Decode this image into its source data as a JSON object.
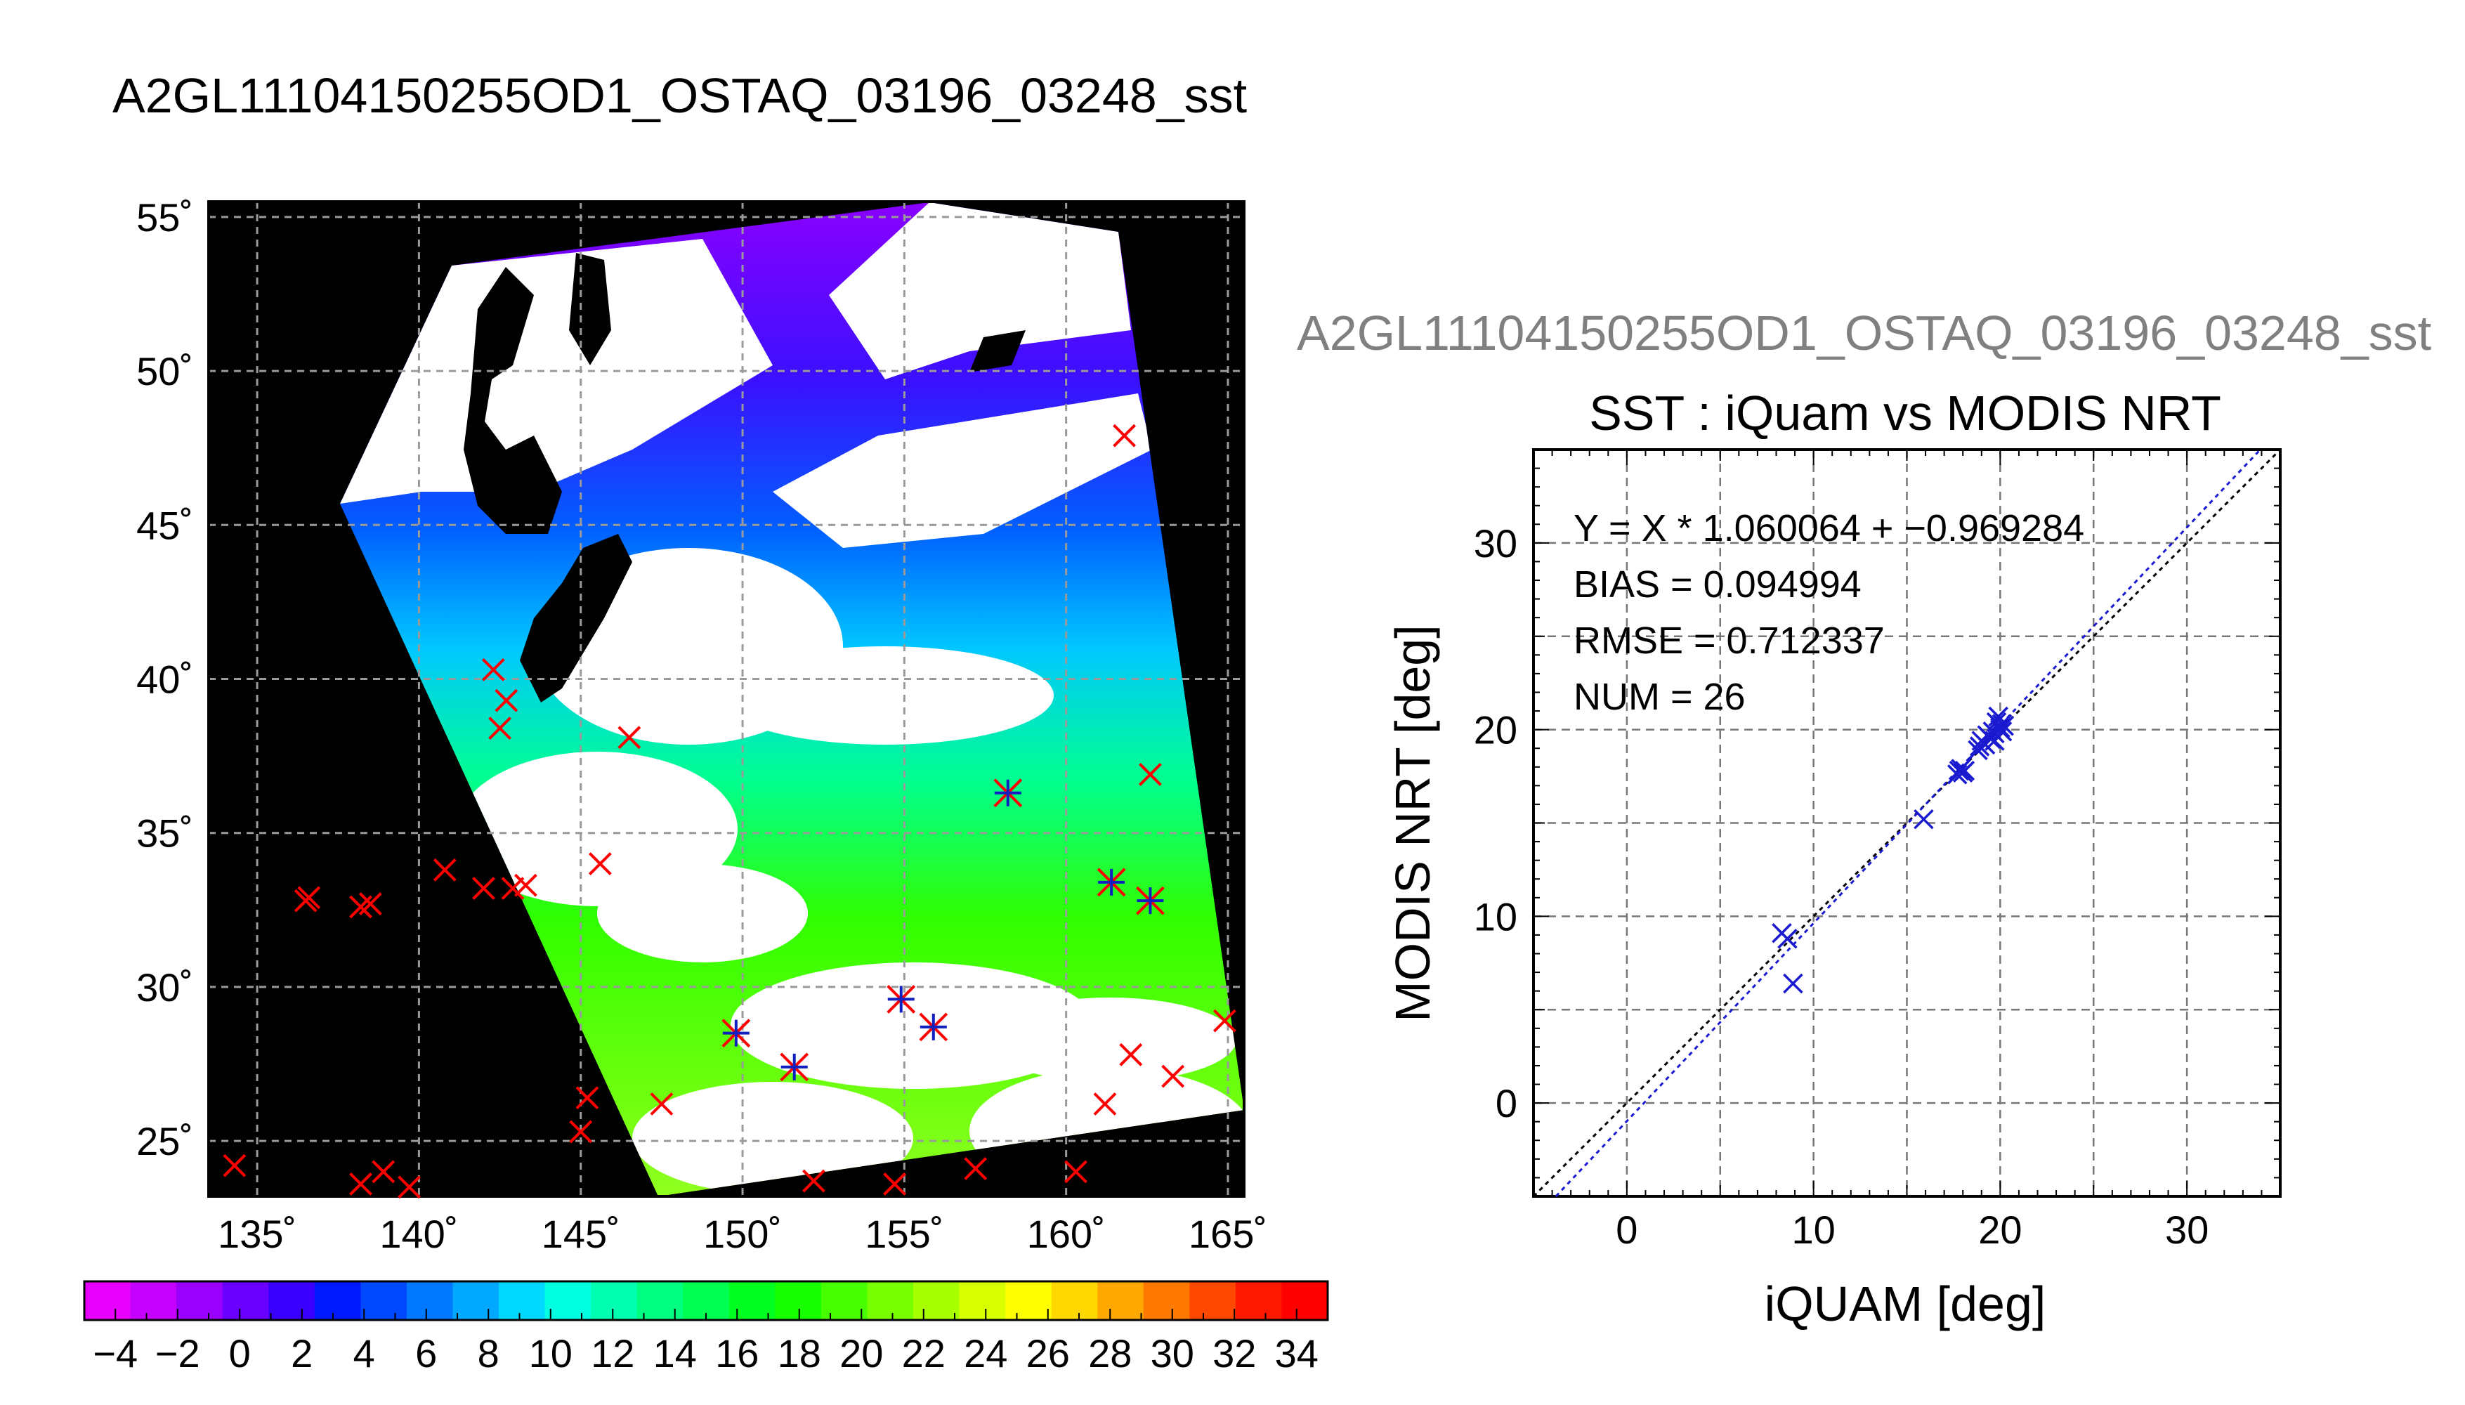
{
  "page": {
    "title": "A2GL11104150255OD1_OSTAQ_03196_03248_sst"
  },
  "chart_data": [
    {
      "type": "map",
      "name": "",
      "x_tick_labels": [
        "135˚",
        "140˚",
        "145˚",
        "150˚",
        "155˚",
        "160˚",
        "165˚"
      ],
      "y_tick_labels": [
        "55˚",
        "50˚",
        "45˚",
        "40˚",
        "35˚",
        "30˚",
        "25˚"
      ],
      "xlim": [
        133.5,
        165.5
      ],
      "ylim": [
        23.2,
        55.5
      ],
      "x_ticks": [
        135,
        140,
        145,
        150,
        155,
        160,
        165
      ],
      "y_ticks": [
        55,
        50,
        45,
        40,
        35,
        30,
        25
      ],
      "grid": true,
      "colorbar": {
        "min": -5,
        "max": 35,
        "labels": [
          "−4",
          "−2",
          "0",
          "2",
          "4",
          "6",
          "8",
          "10",
          "12",
          "14",
          "16",
          "18",
          "20",
          "22",
          "24",
          "26",
          "28",
          "30",
          "32",
          "34"
        ],
        "colors": [
          "#e800ff",
          "#c400ff",
          "#9a00ff",
          "#6a00ff",
          "#3a00ff",
          "#0018ff",
          "#0048ff",
          "#0078ff",
          "#00a8ff",
          "#00d8ff",
          "#00ffe0",
          "#00ffb0",
          "#00ff80",
          "#00ff50",
          "#00ff20",
          "#18ff00",
          "#48ff00",
          "#78ff00",
          "#a8ff00",
          "#d8ff00",
          "#ffff00",
          "#ffd800",
          "#ffa800",
          "#ff7800",
          "#ff4800",
          "#ff1800",
          "#ff0000"
        ]
      },
      "markers_red_x": [
        [
          134.3,
          24.2
        ],
        [
          136.5,
          32.8
        ],
        [
          136.6,
          32.9
        ],
        [
          138.2,
          32.6
        ],
        [
          138.5,
          32.7
        ],
        [
          138.2,
          23.6
        ],
        [
          138.9,
          24.0
        ],
        [
          139.7,
          23.5
        ],
        [
          140.8,
          33.8
        ],
        [
          142.0,
          33.2
        ],
        [
          142.3,
          40.3
        ],
        [
          142.7,
          39.3
        ],
        [
          142.5,
          38.4
        ],
        [
          142.9,
          33.2
        ],
        [
          143.3,
          33.3
        ],
        [
          145.0,
          25.3
        ],
        [
          145.2,
          26.4
        ],
        [
          145.6,
          34.0
        ],
        [
          146.5,
          38.1
        ],
        [
          147.5,
          26.2
        ],
        [
          152.2,
          23.7
        ],
        [
          154.7,
          23.6
        ],
        [
          157.2,
          24.1
        ],
        [
          160.3,
          24.0
        ],
        [
          161.2,
          26.2
        ],
        [
          161.8,
          47.9
        ],
        [
          162.0,
          27.8
        ],
        [
          162.6,
          36.9
        ],
        [
          163.3,
          27.1
        ],
        [
          164.9,
          28.9
        ]
      ],
      "markers_star": [
        [
          149.8,
          28.5
        ],
        [
          151.6,
          27.4
        ],
        [
          154.9,
          29.6
        ],
        [
          155.9,
          28.7
        ],
        [
          158.2,
          36.3
        ],
        [
          161.4,
          33.4
        ],
        [
          162.6,
          32.8
        ]
      ]
    },
    {
      "type": "scatter",
      "title": "SST : iQuam vs MODIS NRT",
      "subtitle": "A2GL11104150255OD1_OSTAQ_03196_03248_sst",
      "xlabel": "iQUAM [deg]",
      "ylabel": "MODIS NRT [deg]",
      "xlim": [
        -5,
        35
      ],
      "ylim": [
        -5,
        35
      ],
      "x_ticks": [
        0,
        10,
        20,
        30
      ],
      "y_ticks": [
        0,
        10,
        20,
        30
      ],
      "grid": true,
      "fit": {
        "slope": 1.060064,
        "intercept": -0.969284
      },
      "annotations": [
        "Y = X * 1.060064 + −0.969284",
        "BIAS = 0.094994",
        "RMSE = 0.712337",
        "NUM = 26"
      ],
      "points": [
        [
          8.3,
          9.1
        ],
        [
          8.6,
          8.8
        ],
        [
          8.9,
          6.4
        ],
        [
          15.9,
          15.2
        ],
        [
          17.7,
          17.6
        ],
        [
          17.8,
          17.8
        ],
        [
          18.0,
          17.7
        ],
        [
          18.8,
          18.9
        ],
        [
          19.0,
          19.4
        ],
        [
          19.2,
          19.2
        ],
        [
          19.4,
          19.6
        ],
        [
          19.5,
          19.5
        ],
        [
          19.7,
          19.8
        ],
        [
          19.8,
          20.4
        ],
        [
          20.0,
          20.1
        ],
        [
          20.1,
          19.9
        ],
        [
          20.2,
          20.2
        ],
        [
          19.9,
          20.7
        ],
        [
          17.9,
          17.9
        ],
        [
          18.9,
          19.1
        ],
        [
          19.3,
          19.7
        ],
        [
          19.6,
          19.9
        ],
        [
          20.0,
          20.0
        ],
        [
          19.7,
          19.4
        ],
        [
          20.1,
          20.3
        ],
        [
          18.1,
          17.8
        ]
      ]
    }
  ]
}
